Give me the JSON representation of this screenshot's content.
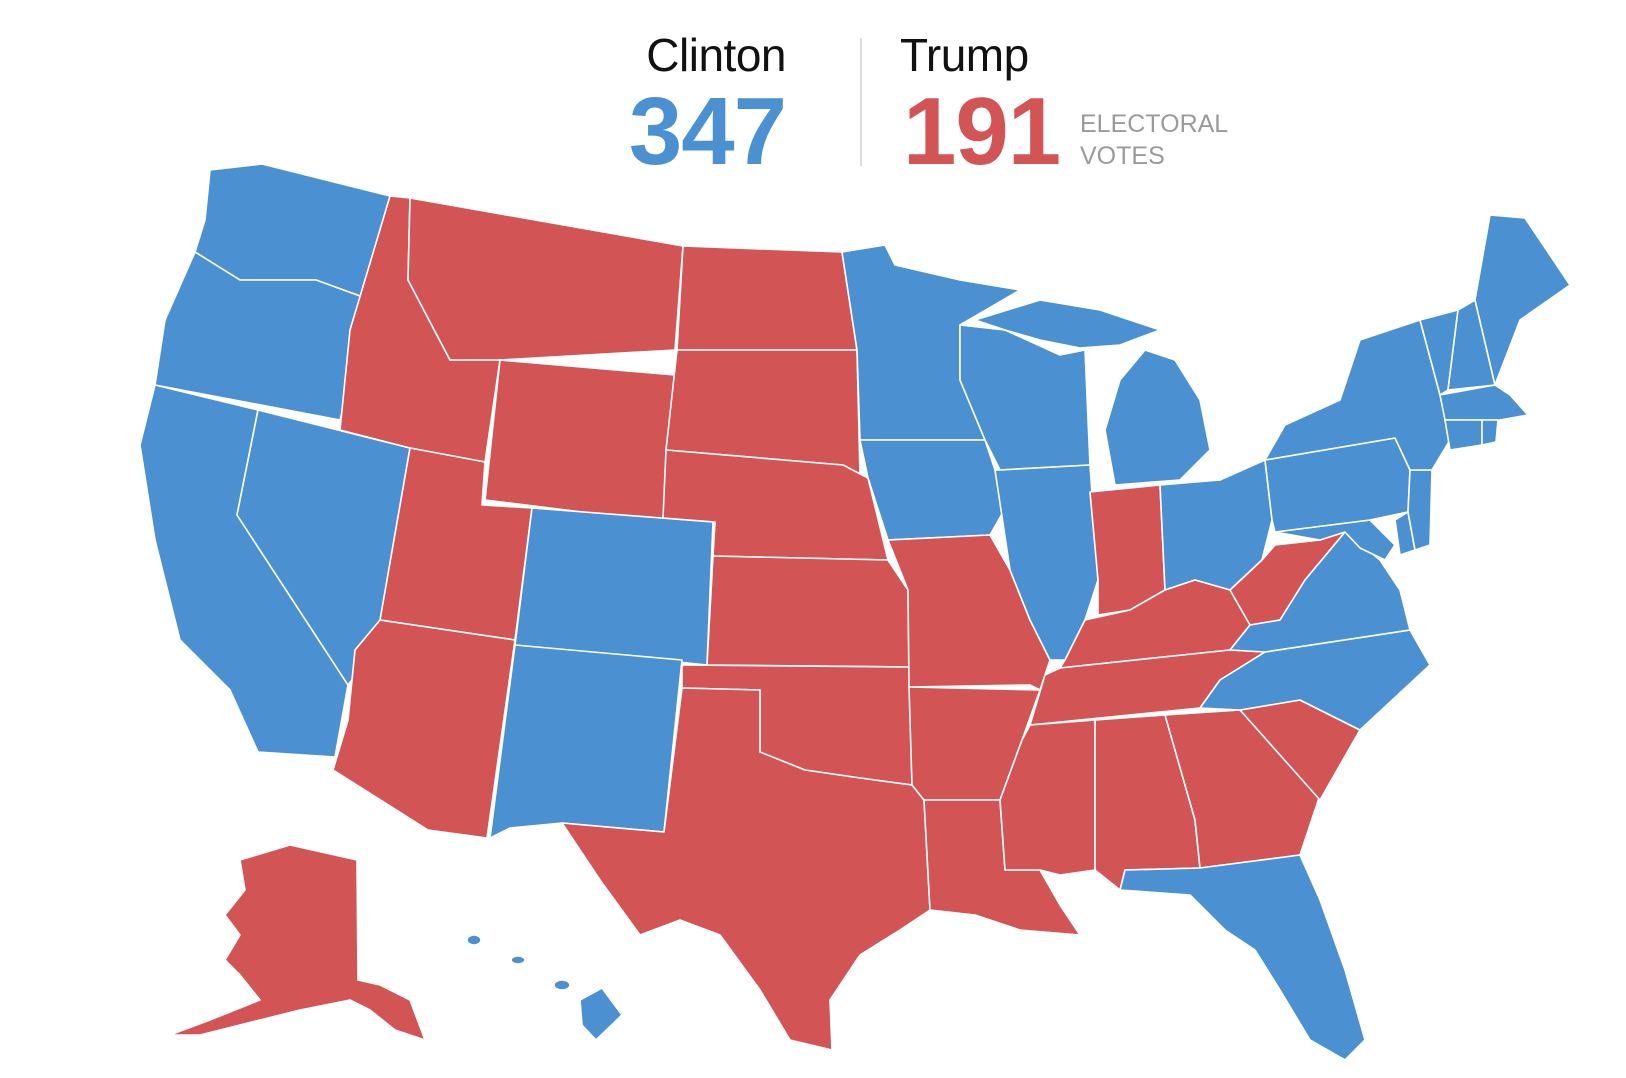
{
  "header": {
    "candidate_left": "Clinton",
    "votes_left": "347",
    "candidate_right": "Trump",
    "votes_right": "191",
    "votes_label_line1": "ELECTORAL",
    "votes_label_line2": "VOTES"
  },
  "colors": {
    "clinton": "#4b91d1",
    "trump": "#d35455",
    "border": "#ffffff"
  },
  "map": {
    "blue_states": [
      "WA",
      "OR",
      "CA",
      "NV",
      "CO",
      "NM",
      "MN",
      "IA",
      "WI",
      "IL",
      "MI",
      "OH",
      "PA",
      "NY",
      "VT",
      "NH",
      "ME",
      "MA",
      "CT",
      "RI",
      "NJ",
      "DE",
      "MD",
      "VA",
      "NC",
      "FL",
      "HI"
    ],
    "red_states": [
      "ID",
      "MT",
      "WY",
      "UT",
      "AZ",
      "ND",
      "SD",
      "NE",
      "KS",
      "OK",
      "TX",
      "MO",
      "AR",
      "LA",
      "IN",
      "KY",
      "TN",
      "MS",
      "AL",
      "GA",
      "SC",
      "WV",
      "AK"
    ]
  }
}
